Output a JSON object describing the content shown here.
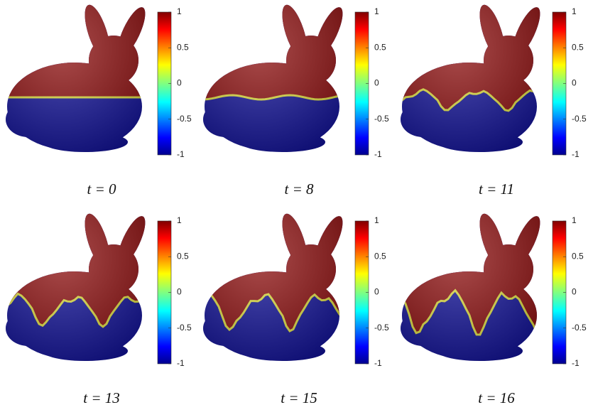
{
  "panels": [
    {
      "caption": "t = 0"
    },
    {
      "caption": "t = 8"
    },
    {
      "caption": "t = 11"
    },
    {
      "caption": "t = 13"
    },
    {
      "caption": "t = 15"
    },
    {
      "caption": "t = 16"
    }
  ],
  "colorbar": {
    "range": [
      -1,
      1
    ],
    "ticks": [
      1,
      0.5,
      0,
      -0.5,
      -1
    ]
  }
}
